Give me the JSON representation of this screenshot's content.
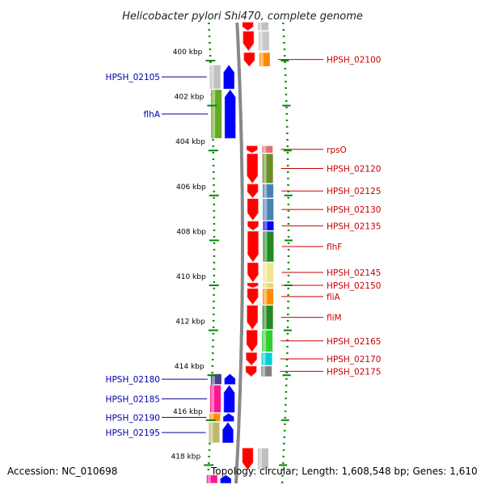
{
  "title": "Helicobacter pylori Shi470, complete genome",
  "footer": {
    "accession": "Accession: NC_010698",
    "summary": "Topology: circular; Length: 1,608,548 bp; Genes: 1,610"
  },
  "scale": {
    "unit": "kbp",
    "ticks": [
      {
        "kbp": 400,
        "label": "400 kbp"
      },
      {
        "kbp": 402,
        "label": "402 kbp"
      },
      {
        "kbp": 404,
        "label": "404 kbp"
      },
      {
        "kbp": 406,
        "label": "406 kbp"
      },
      {
        "kbp": 408,
        "label": "408 kbp"
      },
      {
        "kbp": 410,
        "label": "410 kbp"
      },
      {
        "kbp": 412,
        "label": "412 kbp"
      },
      {
        "kbp": 414,
        "label": "414 kbp"
      },
      {
        "kbp": 416,
        "label": "416 kbp"
      },
      {
        "kbp": 418,
        "label": "418 kbp"
      }
    ]
  },
  "colors": {
    "reverse_strand": "#ff0000",
    "forward_strand": "#0000ff",
    "reverse_label": "#cc0000",
    "forward_label": "#0000aa",
    "backbone": "#888888",
    "guide": "#008800"
  },
  "genes": [
    {
      "name": "",
      "strand": "reverse",
      "start_kbp": 398.3,
      "end_kbp": 398.65,
      "cat_color": "#c0c0c0"
    },
    {
      "name": "",
      "strand": "reverse",
      "start_kbp": 398.7,
      "end_kbp": 399.55,
      "cat_color": "#c8c8c8"
    },
    {
      "name": "HPSH_02100",
      "strand": "reverse",
      "start_kbp": 399.65,
      "end_kbp": 400.25,
      "cat_color": "#ff8800"
    },
    {
      "name": "HPSH_02105",
      "strand": "forward",
      "start_kbp": 400.2,
      "end_kbp": 401.25,
      "cat_color": "#c0c0c0"
    },
    {
      "name": "flhA",
      "strand": "forward",
      "start_kbp": 401.3,
      "end_kbp": 403.45,
      "cat_color": "#66aa22"
    },
    {
      "name": "rpsO",
      "strand": "reverse",
      "start_kbp": 403.8,
      "end_kbp": 404.1,
      "cat_color": "#e07070"
    },
    {
      "name": "HPSH_02120",
      "strand": "reverse",
      "start_kbp": 404.15,
      "end_kbp": 405.45,
      "cat_color": "#6b8e23"
    },
    {
      "name": "HPSH_02125",
      "strand": "reverse",
      "start_kbp": 405.5,
      "end_kbp": 406.1,
      "cat_color": "#4682b4"
    },
    {
      "name": "HPSH_02130",
      "strand": "reverse",
      "start_kbp": 406.15,
      "end_kbp": 407.1,
      "cat_color": "#4682b4"
    },
    {
      "name": "HPSH_02135",
      "strand": "reverse",
      "start_kbp": 407.15,
      "end_kbp": 407.55,
      "cat_color": "#0000ee"
    },
    {
      "name": "flhF",
      "strand": "reverse",
      "start_kbp": 407.6,
      "end_kbp": 408.95,
      "cat_color": "#228b22"
    },
    {
      "name": "HPSH_02145",
      "strand": "reverse",
      "start_kbp": 409.0,
      "end_kbp": 409.85,
      "cat_color": "#f0e68c"
    },
    {
      "name": "HPSH_02150",
      "strand": "reverse",
      "start_kbp": 409.9,
      "end_kbp": 410.1,
      "cat_color": "#e6d86e"
    },
    {
      "name": "fliA",
      "strand": "reverse",
      "start_kbp": 410.15,
      "end_kbp": 410.85,
      "cat_color": "#ff8c00"
    },
    {
      "name": "fliM",
      "strand": "reverse",
      "start_kbp": 410.9,
      "end_kbp": 411.95,
      "cat_color": "#228b22"
    },
    {
      "name": "HPSH_02165",
      "strand": "reverse",
      "start_kbp": 412.0,
      "end_kbp": 412.95,
      "cat_color": "#32cd32"
    },
    {
      "name": "HPSH_02170",
      "strand": "reverse",
      "start_kbp": 413.0,
      "end_kbp": 413.55,
      "cat_color": "#00ced1"
    },
    {
      "name": "HPSH_02175",
      "strand": "reverse",
      "start_kbp": 413.6,
      "end_kbp": 414.05,
      "cat_color": "#808080"
    },
    {
      "name": "HPSH_02180",
      "strand": "forward",
      "start_kbp": 413.95,
      "end_kbp": 414.4,
      "cat_color": "#483d8b"
    },
    {
      "name": "HPSH_02185",
      "strand": "forward",
      "start_kbp": 414.45,
      "end_kbp": 415.65,
      "cat_color": "#ff1493"
    },
    {
      "name": "HPSH_02190",
      "strand": "forward",
      "start_kbp": 415.7,
      "end_kbp": 416.05,
      "cat_color": "#ff8c00"
    },
    {
      "name": "HPSH_02195",
      "strand": "forward",
      "start_kbp": 416.1,
      "end_kbp": 417.0,
      "cat_color": "#bdb76b"
    },
    {
      "name": "",
      "strand": "reverse",
      "start_kbp": 417.25,
      "end_kbp": 418.2,
      "cat_color": "#c0c0c0"
    },
    {
      "name": "",
      "strand": "forward",
      "start_kbp": 418.45,
      "end_kbp": 418.8,
      "cat_color": "#ff1493"
    }
  ]
}
